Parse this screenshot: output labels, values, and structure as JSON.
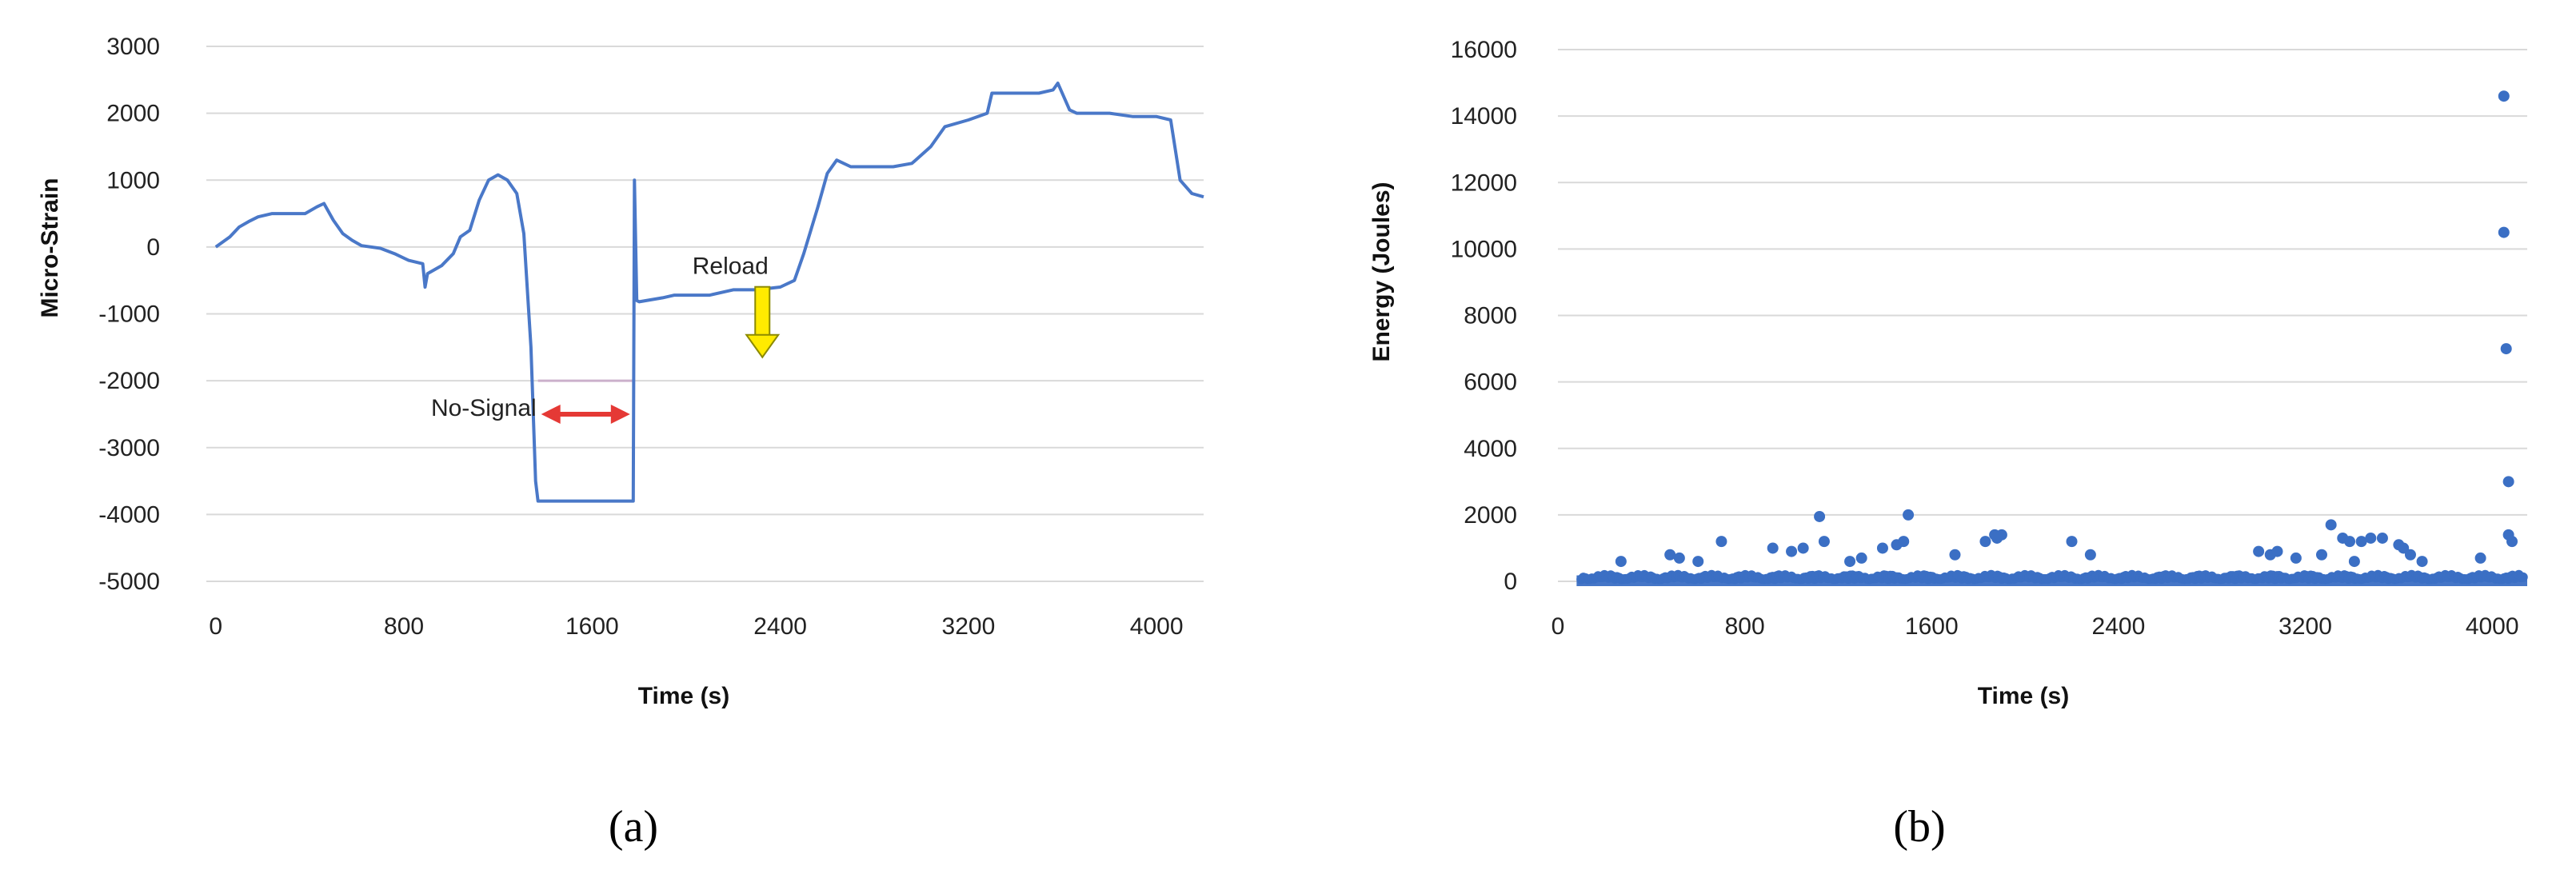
{
  "chart_data": [
    {
      "panel": "(a)",
      "type": "line",
      "xlabel": "Time (s)",
      "ylabel": "Micro-Strain",
      "xlim": [
        -40,
        4200
      ],
      "ylim": [
        -5000,
        3000
      ],
      "x_ticks": [
        0,
        800,
        1600,
        2400,
        3200,
        4000
      ],
      "y_ticks": [
        3000,
        2000,
        1000,
        0,
        -1000,
        -2000,
        -3000,
        -4000,
        -5000
      ],
      "grid": "horizontal",
      "series_color": "#4a78c8",
      "series": [
        {
          "x": [
            0,
            60,
            100,
            140,
            180,
            240,
            300,
            380,
            430,
            460,
            500,
            540,
            580,
            620,
            700,
            760,
            820,
            880,
            890,
            900,
            960,
            1010,
            1040,
            1080,
            1120,
            1160,
            1200,
            1240,
            1280,
            1310,
            1340,
            1360,
            1370,
            1370,
            1775,
            1775,
            1780,
            1790,
            1800,
            1900,
            1950,
            2100,
            2200,
            2300,
            2400,
            2460,
            2500,
            2560,
            2600,
            2640,
            2700,
            2760,
            2800,
            2880,
            2960,
            3040,
            3100,
            3200,
            3280,
            3300,
            3340,
            3500,
            3560,
            3580,
            3630,
            3660,
            3700,
            3800,
            3900,
            4000,
            4060,
            4100,
            4150,
            4200
          ],
          "y": [
            0,
            150,
            300,
            380,
            450,
            500,
            500,
            500,
            600,
            650,
            400,
            200,
            100,
            20,
            -20,
            -100,
            -200,
            -250,
            -600,
            -400,
            -280,
            -100,
            150,
            250,
            700,
            1000,
            1080,
            1000,
            800,
            200,
            -1500,
            -3500,
            -3800,
            -3800,
            -3800,
            -3800,
            1000,
            -800,
            -820,
            -760,
            -720,
            -720,
            -640,
            -640,
            -600,
            -500,
            -100,
            600,
            1100,
            1300,
            1200,
            1200,
            1200,
            1200,
            1250,
            1500,
            1800,
            1900,
            2000,
            2300,
            2300,
            2300,
            2350,
            2450,
            2050,
            2000,
            2000,
            2000,
            1950,
            1950,
            1900,
            1000,
            800,
            750
          ]
        }
      ],
      "annotations": [
        {
          "text": "No-Signal",
          "x": 1570,
          "y": -2500,
          "kind": "double-arrow",
          "x_from": 1370,
          "x_to": 1775,
          "color": "#e53935"
        },
        {
          "text": "Reload",
          "x": 2290,
          "y": -620,
          "kind": "down-arrow",
          "color": "#ffeb00"
        }
      ],
      "no_signal_ref_line": {
        "y": -2000,
        "x_from": 1370,
        "x_to": 1775,
        "color": "#cbb0cb"
      }
    },
    {
      "panel": "(b)",
      "type": "scatter",
      "xlabel": "Time (s)",
      "ylabel": "Energy (Joules)",
      "xlim": [
        0,
        4150
      ],
      "ylim": [
        0,
        16000
      ],
      "x_ticks": [
        0,
        800,
        1600,
        2400,
        3200,
        4000
      ],
      "x_tick_labels": [
        "0",
        "800",
        "1600",
        "2400",
        "3200",
        "4000"
      ],
      "y_ticks": [
        16000,
        14000,
        12000,
        10000,
        8000,
        6000,
        4000,
        2000,
        0
      ],
      "y_tick_labels": [
        "16000",
        "14000",
        "12000",
        "10000",
        "8000",
        "6000",
        "4000",
        "2000",
        "0"
      ],
      "grid": "horizontal",
      "series_color": "#3b6fc4",
      "points_x": [
        4050,
        4050,
        4060,
        4070,
        4085,
        4070,
        3310,
        1120,
        1500,
        1870,
        1900,
        1880,
        2200,
        2280,
        700,
        1050,
        1140,
        920,
        1000,
        1390,
        1450,
        1480,
        1700,
        3360,
        3390,
        3440,
        3480,
        3530,
        3600,
        3620,
        3650,
        3000,
        3050,
        3080,
        3160,
        270,
        480,
        520,
        600,
        3270,
        3410,
        1830,
        1300,
        1250,
        3700,
        3950
      ],
      "points_y": [
        14600,
        10500,
        7000,
        3000,
        1200,
        1400,
        1700,
        1950,
        2000,
        1400,
        1400,
        1300,
        1200,
        800,
        1200,
        1000,
        1200,
        1000,
        900,
        1000,
        1100,
        1200,
        800,
        1300,
        1200,
        1200,
        1300,
        1300,
        1100,
        1000,
        800,
        900,
        800,
        900,
        700,
        600,
        800,
        700,
        600,
        800,
        600,
        1200,
        700,
        600,
        600,
        700
      ]
    }
  ],
  "captions": {
    "a": "(a)",
    "b": "(b)"
  },
  "annotation_labels": {
    "no_signal": "No-Signal",
    "reload": "Reload"
  }
}
